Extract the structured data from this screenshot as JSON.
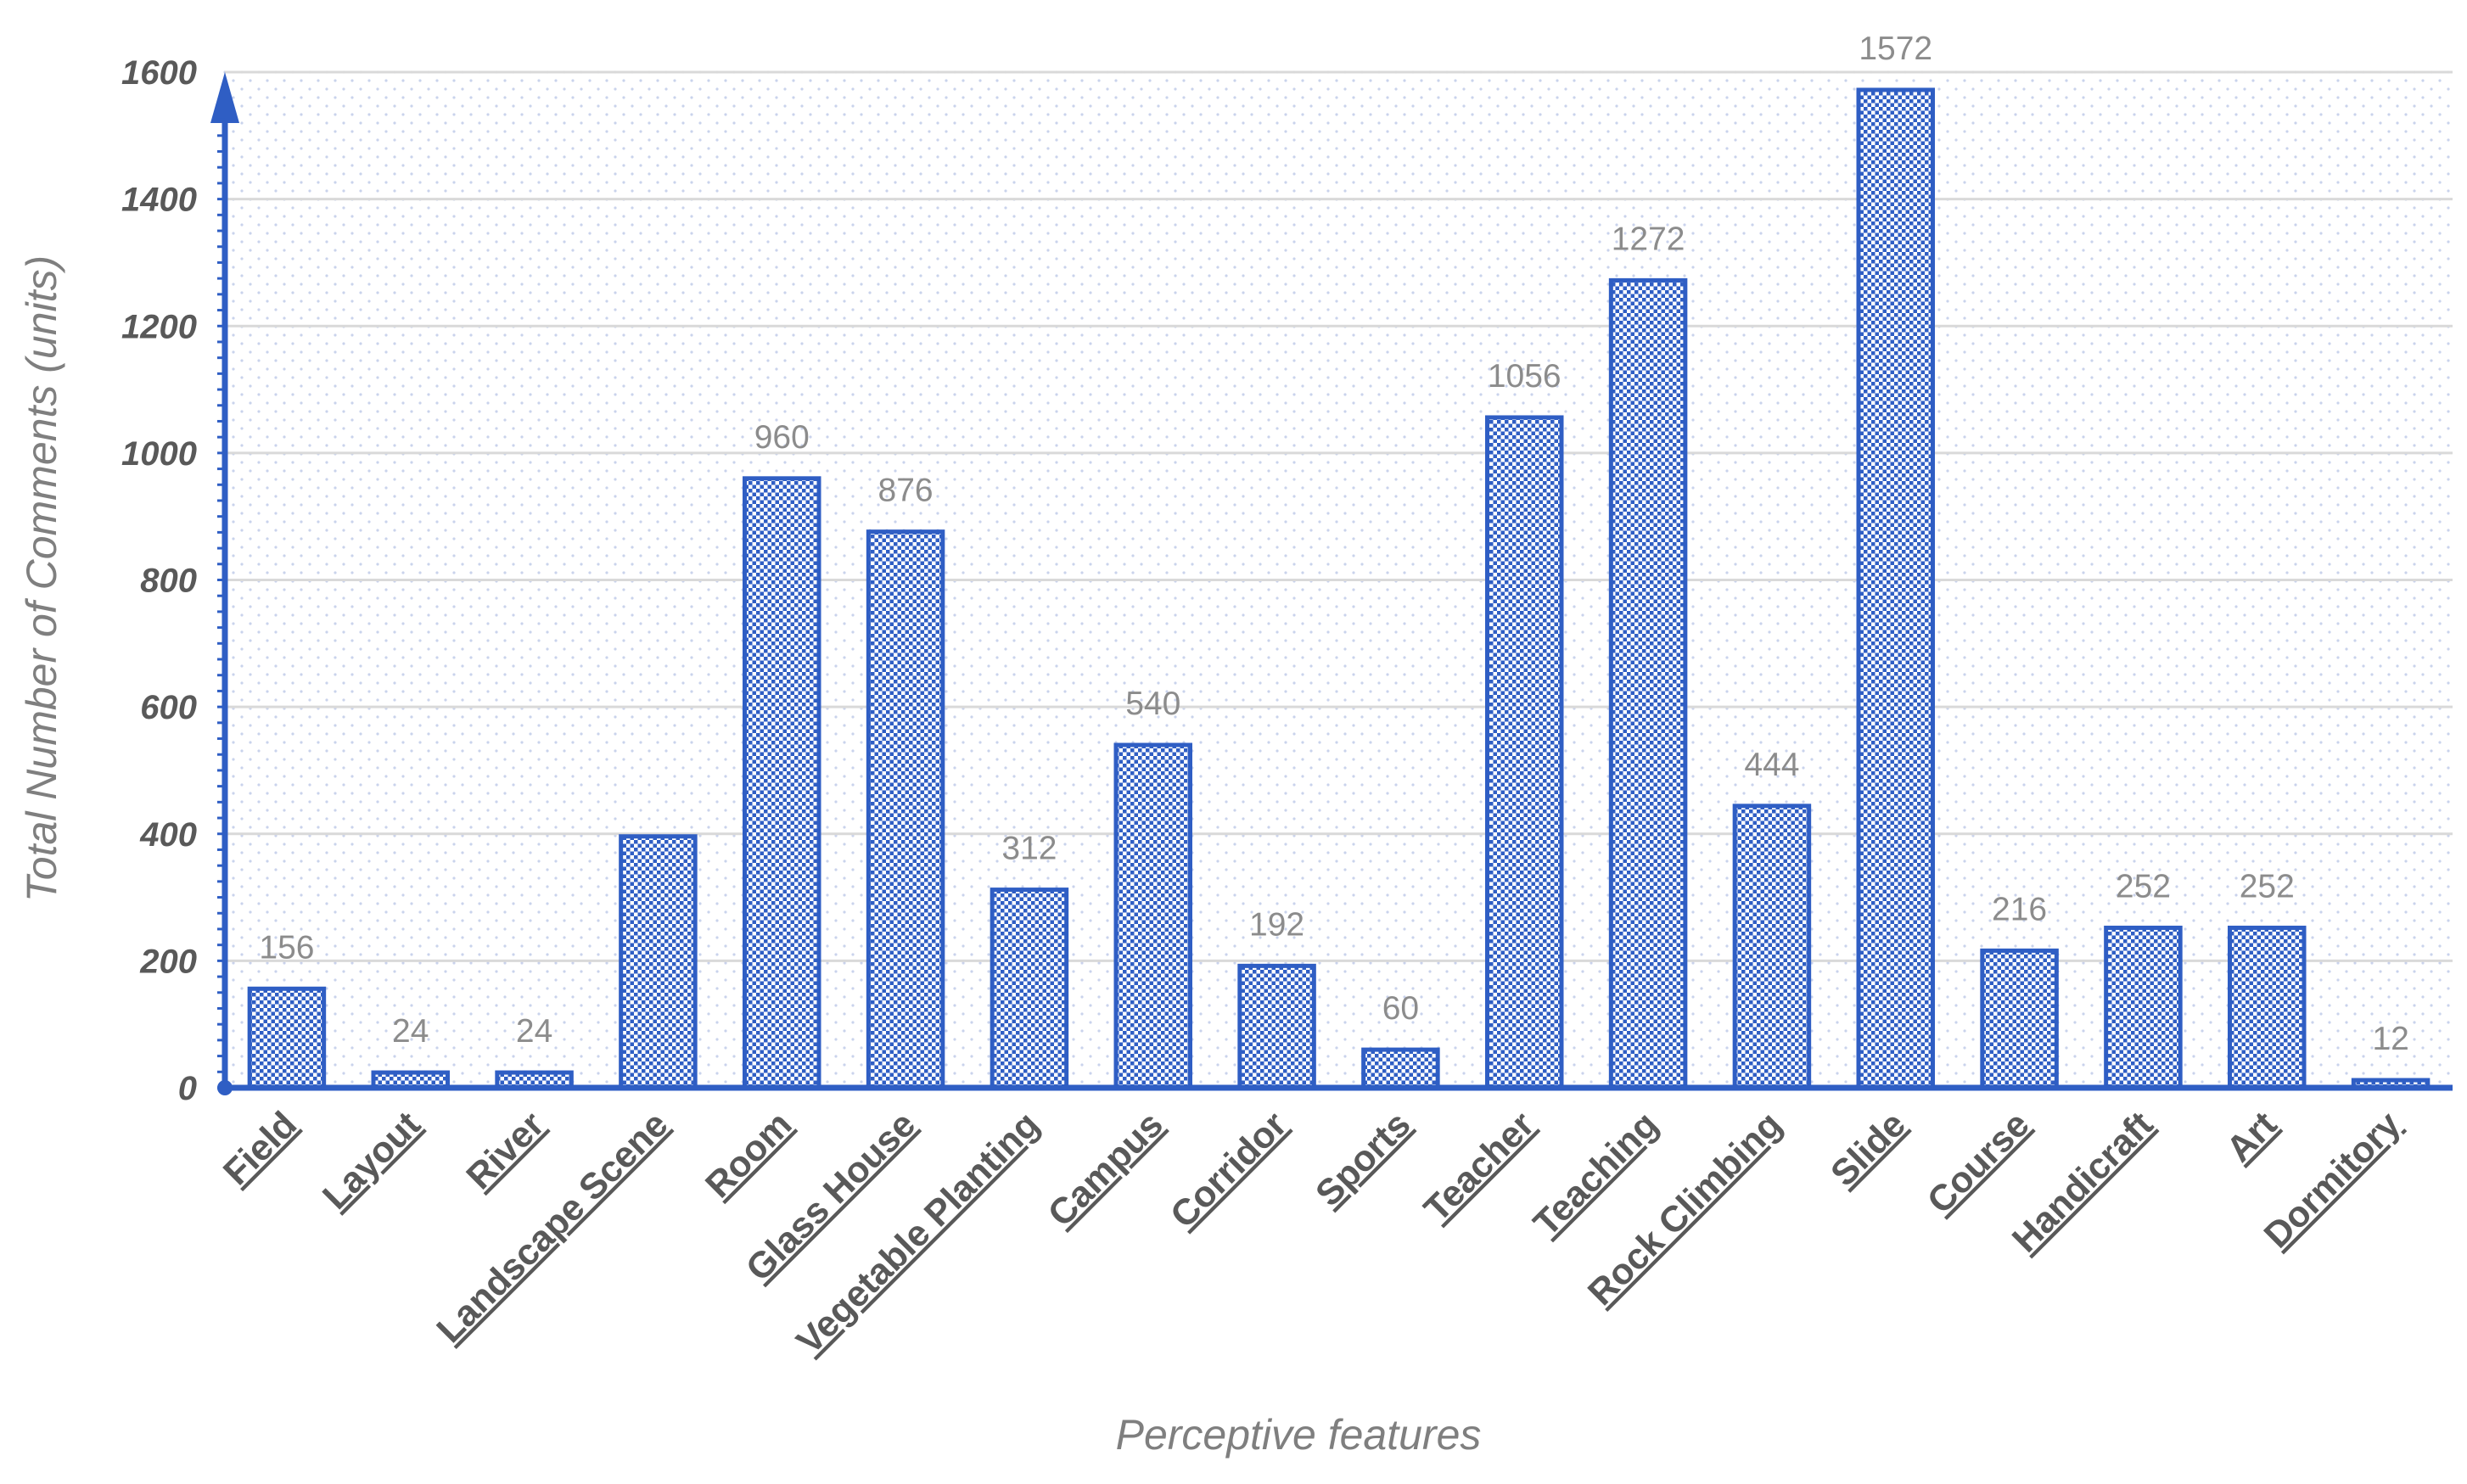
{
  "chart_data": {
    "type": "bar",
    "title": "",
    "xlabel": "Perceptive features",
    "ylabel": "Total Number of Comments (units)",
    "ylim": [
      0,
      1600
    ],
    "yticks": [
      "0",
      "200",
      "400",
      "600",
      "800",
      "1000",
      "1200",
      "1400",
      "1600"
    ],
    "grid": true,
    "legend": "none",
    "bar_color": "#2f5ec4",
    "categories": [
      "Field",
      "Layout",
      "River",
      "Landscape Scene",
      "Room",
      "Glass House",
      "Vegetable Planting",
      "Campus",
      "Corridor",
      "Sports",
      "Teacher",
      "Teaching",
      "Rock Climbing",
      "Slide",
      "Course",
      "Handicraft",
      "Art",
      "Dormitory"
    ],
    "values": [
      156,
      24,
      24,
      396,
      960,
      876,
      312,
      540,
      192,
      60,
      1056,
      1272,
      444,
      1572,
      216,
      252,
      252,
      12
    ],
    "data_labels": [
      "156",
      "24",
      "24",
      "",
      "960",
      "876",
      "312",
      "540",
      "192",
      "60",
      "1056",
      "1272",
      "444",
      "1572",
      "216",
      "252",
      "252",
      "12"
    ]
  }
}
